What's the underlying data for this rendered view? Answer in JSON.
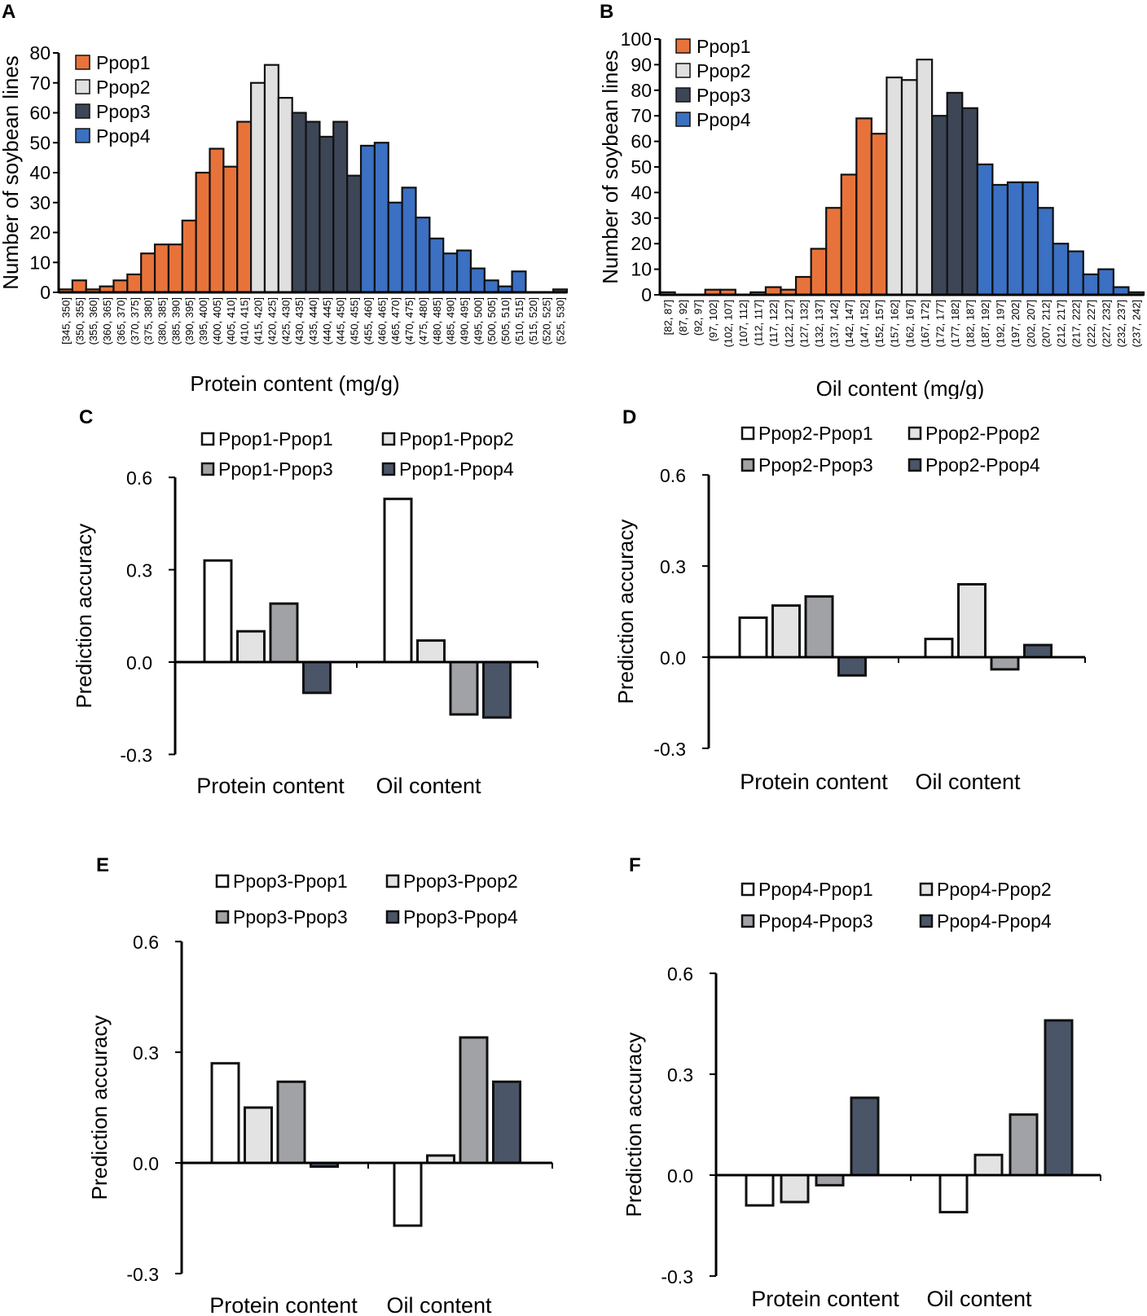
{
  "colors": {
    "Ppop1_hist": "#e8733a",
    "Ppop2_hist": "#e0e0e0",
    "Ppop3_hist": "#3d4656",
    "Ppop4_hist": "#3b70c2",
    "pair1": "#ffffff",
    "pair2": "#e3e3e3",
    "pair3": "#a1a2a6",
    "pair4": "#4a5568"
  },
  "chart_data": [
    {
      "panel": "A",
      "type": "bar",
      "xlabel": "Protein content (mg/g)",
      "ylabel": "Number of soybean lines",
      "ylim": [
        0,
        80
      ],
      "yticks": [
        0,
        10,
        20,
        30,
        40,
        50,
        60,
        70,
        80
      ],
      "legend": [
        "Ppop1",
        "Ppop2",
        "Ppop3",
        "Ppop4"
      ],
      "categories": [
        "[345, 350]",
        "(350, 355]",
        "(355, 360]",
        "(360, 365]",
        "(365, 370]",
        "(370, 375]",
        "(375, 380]",
        "(380, 385]",
        "(385, 390]",
        "(390, 395]",
        "(395, 400]",
        "(400, 405]",
        "(405, 410]",
        "(410, 415]",
        "(415, 420]",
        "(420, 425]",
        "(425, 430]",
        "(430, 435]",
        "(435, 440]",
        "(440, 445]",
        "(445, 450]",
        "(450, 455]",
        "(455, 460]",
        "(460, 465]",
        "(465, 470]",
        "(470, 475]",
        "(475, 480]",
        "(480, 485]",
        "(485, 490]",
        "(490, 495]",
        "(495, 500]",
        "(500, 505]",
        "(505, 510]",
        "(510, 515]",
        "(515, 520]",
        "(520, 525]",
        "(525, 530]"
      ],
      "values": [
        1,
        4,
        1,
        2,
        4,
        6,
        13,
        16,
        16,
        24,
        40,
        48,
        42,
        57,
        70,
        76,
        65,
        60,
        57,
        52,
        57,
        39,
        49,
        50,
        30,
        35,
        25,
        18,
        13,
        14,
        8,
        4,
        2,
        7,
        0,
        0,
        1
      ],
      "groups": [
        1,
        1,
        1,
        1,
        1,
        1,
        1,
        1,
        1,
        1,
        1,
        1,
        1,
        1,
        2,
        2,
        2,
        3,
        3,
        3,
        3,
        3,
        4,
        4,
        4,
        4,
        4,
        4,
        4,
        4,
        4,
        4,
        4,
        4,
        4,
        4,
        3
      ]
    },
    {
      "panel": "B",
      "type": "bar",
      "xlabel": "Oil content (mg/g)",
      "ylabel": "Number of soybean lines",
      "ylim": [
        0,
        100
      ],
      "yticks": [
        0,
        10,
        20,
        30,
        40,
        50,
        60,
        70,
        80,
        90,
        100
      ],
      "legend": [
        "Ppop1",
        "Ppop2",
        "Ppop3",
        "Ppop4"
      ],
      "categories": [
        "[82, 87]",
        "(87, 92]",
        "(92, 97]",
        "(97, 102]",
        "(102, 107]",
        "(107, 112]",
        "(112, 117]",
        "(117, 122]",
        "(122, 127]",
        "(127, 132]",
        "(132, 137]",
        "(137, 142]",
        "(142, 147]",
        "(147, 152]",
        "(152, 157]",
        "(157, 162]",
        "(162, 167]",
        "(167, 172]",
        "(172, 177]",
        "(177, 182]",
        "(182, 187]",
        "(187, 192]",
        "(192, 197]",
        "(197, 202]",
        "(202, 207]",
        "(207, 212]",
        "(212, 217]",
        "(217, 222]",
        "(222, 227]",
        "(227, 232]",
        "(232, 237]",
        "(237, 242]"
      ],
      "values": [
        1,
        0,
        0,
        2,
        2,
        0,
        1,
        3,
        2,
        7,
        18,
        34,
        47,
        69,
        63,
        85,
        84,
        92,
        70,
        79,
        73,
        51,
        43,
        44,
        44,
        34,
        20,
        17,
        8,
        10,
        3,
        1
      ],
      "groups": [
        1,
        1,
        1,
        1,
        1,
        1,
        1,
        1,
        1,
        1,
        1,
        1,
        1,
        1,
        1,
        2,
        2,
        2,
        3,
        3,
        3,
        4,
        4,
        4,
        4,
        4,
        4,
        4,
        4,
        4,
        4,
        4
      ]
    },
    {
      "panel": "C",
      "type": "bar",
      "ylabel": "Prediction accuracy",
      "ylim": [
        -0.3,
        0.6
      ],
      "yticks": [
        "0.6",
        "0.3",
        "0.0",
        "-0.3"
      ],
      "categories": [
        "Protein content",
        "Oil content"
      ],
      "series": [
        {
          "name": "Ppop1-Ppop1",
          "values": [
            0.33,
            0.53
          ]
        },
        {
          "name": "Ppop1-Ppop2",
          "values": [
            0.1,
            0.07
          ]
        },
        {
          "name": "Ppop1-Ppop3",
          "values": [
            0.19,
            -0.17
          ]
        },
        {
          "name": "Ppop1-Ppop4",
          "values": [
            -0.1,
            -0.18
          ]
        }
      ]
    },
    {
      "panel": "D",
      "type": "bar",
      "ylabel": "Prediction accuracy",
      "ylim": [
        -0.3,
        0.6
      ],
      "yticks": [
        "0.6",
        "0.3",
        "0.0",
        "-0.3"
      ],
      "categories": [
        "Protein content",
        "Oil content"
      ],
      "series": [
        {
          "name": "Ppop2-Ppop1",
          "values": [
            0.13,
            0.06
          ]
        },
        {
          "name": "Ppop2-Ppop2",
          "values": [
            0.17,
            0.24
          ]
        },
        {
          "name": "Ppop2-Ppop3",
          "values": [
            0.2,
            -0.04
          ]
        },
        {
          "name": "Ppop2-Ppop4",
          "values": [
            -0.06,
            0.04
          ]
        }
      ]
    },
    {
      "panel": "E",
      "type": "bar",
      "ylabel": "Prediction accuracy",
      "ylim": [
        -0.3,
        0.6
      ],
      "yticks": [
        "0.6",
        "0.3",
        "0.0",
        "-0.3"
      ],
      "categories": [
        "Protein content",
        "Oil content"
      ],
      "series": [
        {
          "name": "Ppop3-Ppop1",
          "values": [
            0.27,
            -0.17
          ]
        },
        {
          "name": "Ppop3-Ppop2",
          "values": [
            0.15,
            0.02
          ]
        },
        {
          "name": "Ppop3-Ppop3",
          "values": [
            0.22,
            0.34
          ]
        },
        {
          "name": "Ppop3-Ppop4",
          "values": [
            -0.01,
            0.22
          ]
        }
      ]
    },
    {
      "panel": "F",
      "type": "bar",
      "ylabel": "Prediction accuracy",
      "ylim": [
        -0.3,
        0.6
      ],
      "yticks": [
        "0.6",
        "0.3",
        "0.0",
        "-0.3"
      ],
      "categories": [
        "Protein content",
        "Oil content"
      ],
      "series": [
        {
          "name": "Ppop4-Ppop1",
          "values": [
            -0.09,
            -0.11
          ]
        },
        {
          "name": "Ppop4-Ppop2",
          "values": [
            -0.08,
            0.06
          ]
        },
        {
          "name": "Ppop4-Ppop3",
          "values": [
            -0.03,
            0.18
          ]
        },
        {
          "name": "Ppop4-Ppop4",
          "values": [
            0.23,
            0.46
          ]
        }
      ]
    }
  ]
}
